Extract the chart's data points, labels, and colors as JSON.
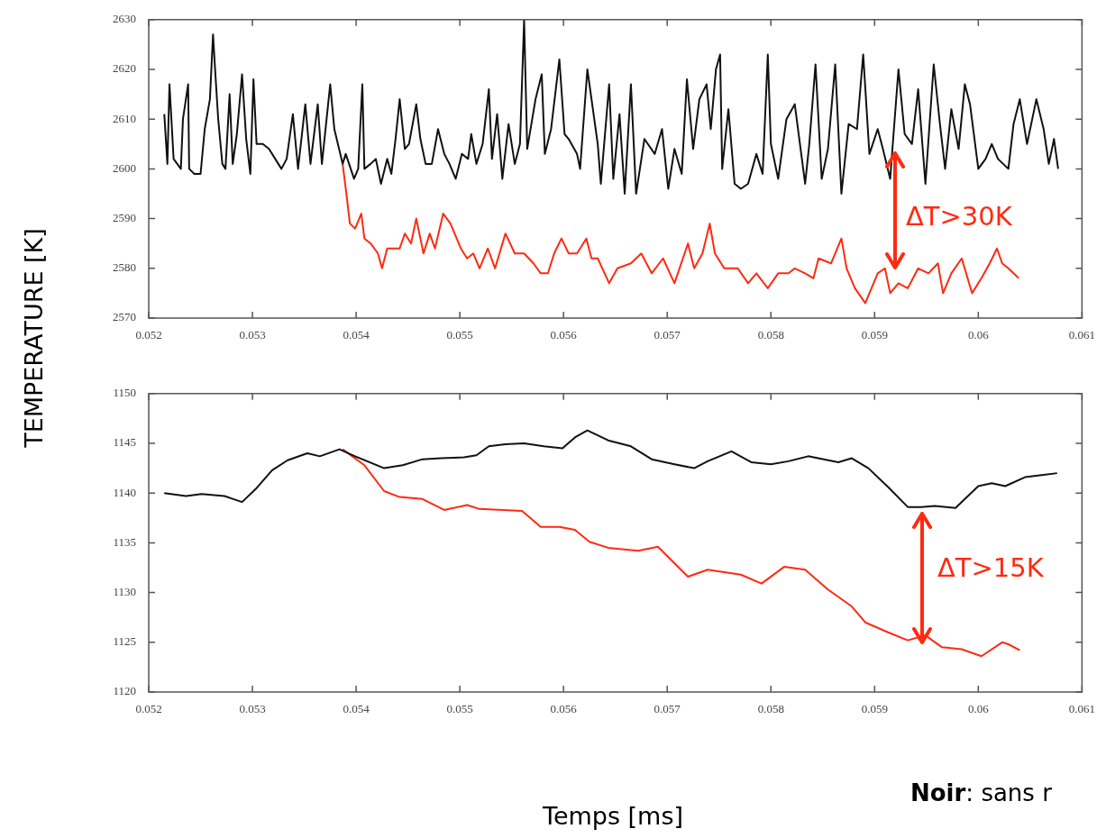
{
  "chart_data": [
    {
      "type": "line",
      "ylabel": "TEMPERATURE [K]",
      "xlim": [
        0.052,
        0.061
      ],
      "xticks": [
        0.052,
        0.053,
        0.054,
        0.055,
        0.056,
        0.057,
        0.058,
        0.059,
        0.06,
        0.061
      ],
      "ylim": [
        2570,
        2630
      ],
      "yticks": [
        2570,
        2580,
        2590,
        2600,
        2610,
        2620,
        2630
      ],
      "marker": "none",
      "line_style": "solid",
      "annotations": [
        "ΔT>30K"
      ],
      "series": [
        {
          "color": "#111111",
          "x": [
            0.05215,
            0.05218,
            0.0522,
            0.05224,
            0.05231,
            0.05233,
            0.05238,
            0.05239,
            0.05244,
            0.0525,
            0.05254,
            0.05259,
            0.05262,
            0.05264,
            0.05267,
            0.05271,
            0.05274,
            0.05278,
            0.05281,
            0.05285,
            0.0529,
            0.05294,
            0.05298,
            0.05301,
            0.05304,
            0.0531,
            0.05316,
            0.05322,
            0.05328,
            0.05333,
            0.05339,
            0.05344,
            0.05351,
            0.05356,
            0.05363,
            0.05367,
            0.05375,
            0.05379,
            0.05387,
            0.0539,
            0.05398,
            0.05402,
            0.05406,
            0.05408,
            0.05414,
            0.05419,
            0.05424,
            0.0543,
            0.05434,
            0.05438,
            0.05442,
            0.05447,
            0.05451,
            0.05458,
            0.05462,
            0.05467,
            0.05473,
            0.05479,
            0.05485,
            0.0549,
            0.05496,
            0.05502,
            0.05508,
            0.05511,
            0.05516,
            0.05522,
            0.05528,
            0.05531,
            0.05536,
            0.05541,
            0.05547,
            0.05553,
            0.05558,
            0.05562,
            0.05565,
            0.05573,
            0.05579,
            0.05582,
            0.05588,
            0.05596,
            0.05601,
            0.05605,
            0.05613,
            0.05616,
            0.05623,
            0.05633,
            0.05636,
            0.05644,
            0.05648,
            0.05654,
            0.05659,
            0.05665,
            0.0567,
            0.05678,
            0.05688,
            0.05695,
            0.05701,
            0.05707,
            0.05714,
            0.05719,
            0.05725,
            0.05731,
            0.05738,
            0.05742,
            0.05747,
            0.05751,
            0.05753,
            0.05759,
            0.05765,
            0.05771,
            0.05778,
            0.05786,
            0.05792,
            0.05797,
            0.058,
            0.05807,
            0.05815,
            0.05823,
            0.05833,
            0.05837,
            0.05843,
            0.05849,
            0.05855,
            0.05862,
            0.05868,
            0.05875,
            0.05883,
            0.05889,
            0.05895,
            0.05903,
            0.05908,
            0.05915,
            0.05923,
            0.05929,
            0.05936,
            0.05942,
            0.05949,
            0.05957,
            0.05963,
            0.05968,
            0.05974,
            0.05981,
            0.05987,
            0.05992,
            0.06,
            0.06007,
            0.06013,
            0.06019,
            0.06029,
            0.06034,
            0.0604,
            0.06047,
            0.06056,
            0.06063,
            0.06068,
            0.06073,
            0.06077
          ],
          "values": [
            2611,
            2601,
            2617,
            2602,
            2600,
            2610,
            2617,
            2600,
            2599,
            2599,
            2608,
            2614,
            2627,
            2620,
            2610,
            2601,
            2600,
            2615,
            2601,
            2607,
            2619,
            2606,
            2599,
            2618,
            2605,
            2605,
            2604,
            2602,
            2600,
            2602,
            2611,
            2600,
            2613,
            2601,
            2613,
            2601,
            2617,
            2608,
            2601,
            2603,
            2598,
            2600,
            2617,
            2600,
            2601,
            2602,
            2597,
            2602,
            2599,
            2606,
            2614,
            2604,
            2605,
            2613,
            2606,
            2601,
            2601,
            2608,
            2603,
            2601,
            2598,
            2603,
            2602,
            2607,
            2601,
            2605,
            2616,
            2602,
            2611,
            2598,
            2609,
            2601,
            2605,
            2630,
            2604,
            2614,
            2619,
            2603,
            2608,
            2622,
            2607,
            2606,
            2603,
            2600,
            2620,
            2605,
            2597,
            2617,
            2598,
            2611,
            2595,
            2617,
            2595,
            2606,
            2603,
            2608,
            2596,
            2604,
            2599,
            2618,
            2604,
            2614,
            2617,
            2608,
            2620,
            2623,
            2600,
            2612,
            2597,
            2596,
            2597,
            2603,
            2599,
            2623,
            2605,
            2598,
            2610,
            2613,
            2597,
            2605,
            2621,
            2598,
            2604,
            2621,
            2595,
            2609,
            2608,
            2623,
            2603,
            2608,
            2604,
            2598,
            2620,
            2607,
            2605,
            2616,
            2597,
            2621,
            2609,
            2600,
            2612,
            2604,
            2617,
            2613,
            2600,
            2602,
            2605,
            2602,
            2600,
            2609,
            2614,
            2605,
            2614,
            2608,
            2601,
            2606,
            2600
          ]
        },
        {
          "color": "#ff2a10",
          "x": [
            0.05387,
            0.0539,
            0.05394,
            0.05399,
            0.05405,
            0.05408,
            0.05414,
            0.05421,
            0.05425,
            0.0543,
            0.05436,
            0.05442,
            0.05447,
            0.05453,
            0.05458,
            0.05462,
            0.05465,
            0.05471,
            0.05476,
            0.05484,
            0.05491,
            0.05501,
            0.05507,
            0.05513,
            0.05519,
            0.05527,
            0.05534,
            0.05544,
            0.05553,
            0.05562,
            0.05571,
            0.05578,
            0.05585,
            0.05591,
            0.05598,
            0.05605,
            0.05613,
            0.05622,
            0.05627,
            0.05633,
            0.05644,
            0.05652,
            0.05665,
            0.05675,
            0.05685,
            0.05696,
            0.05707,
            0.0572,
            0.05726,
            0.05734,
            0.05741,
            0.05746,
            0.05755,
            0.05768,
            0.05778,
            0.05786,
            0.05797,
            0.05807,
            0.05817,
            0.05823,
            0.05833,
            0.05841,
            0.05846,
            0.05858,
            0.05868,
            0.05873,
            0.05881,
            0.05891,
            0.05897,
            0.05903,
            0.0591,
            0.05915,
            0.05923,
            0.05932,
            0.05942,
            0.05952,
            0.05961,
            0.05966,
            0.05974,
            0.05984,
            0.05994,
            0.06003,
            0.06011,
            0.06018,
            0.06023,
            0.06029,
            0.06039
          ],
          "values": [
            2601,
            2596,
            2589,
            2588,
            2591,
            2586,
            2585,
            2583,
            2580,
            2584,
            2584,
            2584,
            2587,
            2585,
            2590,
            2586,
            2583,
            2587,
            2584,
            2591,
            2589,
            2584,
            2582,
            2583,
            2580,
            2584,
            2580,
            2587,
            2583,
            2583,
            2581,
            2579,
            2579,
            2583,
            2586,
            2583,
            2583,
            2586,
            2582,
            2582,
            2577,
            2580,
            2581,
            2583,
            2579,
            2582,
            2577,
            2585,
            2580,
            2583,
            2589,
            2583,
            2580,
            2580,
            2577,
            2579,
            2576,
            2579,
            2579,
            2580,
            2579,
            2578,
            2582,
            2581,
            2586,
            2580,
            2576,
            2573,
            2576,
            2579,
            2580,
            2575,
            2577,
            2576,
            2580,
            2579,
            2581,
            2575,
            2579,
            2582,
            2575,
            2578,
            2581,
            2584,
            2581,
            2580,
            2578
          ]
        }
      ]
    },
    {
      "type": "line",
      "xlabel": "Temps [ms]",
      "xlim": [
        0.052,
        0.061
      ],
      "xticks": [
        0.052,
        0.053,
        0.054,
        0.055,
        0.056,
        0.057,
        0.058,
        0.059,
        0.06,
        0.061
      ],
      "ylim": [
        1120,
        1150
      ],
      "yticks": [
        1120,
        1125,
        1130,
        1135,
        1140,
        1145,
        1150
      ],
      "marker": "none",
      "line_style": "solid",
      "annotations": [
        "ΔT>15K",
        "Noir: sans r"
      ],
      "series": [
        {
          "color": "#111111",
          "x": [
            0.05215,
            0.05236,
            0.05251,
            0.05273,
            0.0529,
            0.05304,
            0.05319,
            0.05334,
            0.05353,
            0.05365,
            0.05384,
            0.05399,
            0.05427,
            0.05445,
            0.05464,
            0.05482,
            0.05504,
            0.05516,
            0.05528,
            0.05544,
            0.05562,
            0.05581,
            0.05599,
            0.05611,
            0.05623,
            0.05643,
            0.05665,
            0.05685,
            0.05707,
            0.05726,
            0.05739,
            0.05762,
            0.05781,
            0.058,
            0.05817,
            0.05836,
            0.05865,
            0.05878,
            0.05894,
            0.05913,
            0.05932,
            0.05945,
            0.05958,
            0.05978,
            0.06,
            0.06013,
            0.06026,
            0.06045,
            0.06061,
            0.06076
          ],
          "values": [
            1140,
            1139.7,
            1139.9,
            1139.7,
            1139.1,
            1140.5,
            1142.3,
            1143.3,
            1144,
            1143.7,
            1144.4,
            1143.7,
            1142.5,
            1142.8,
            1143.4,
            1143.5,
            1143.6,
            1143.8,
            1144.7,
            1144.9,
            1145,
            1144.7,
            1144.5,
            1145.6,
            1146.3,
            1145.3,
            1144.7,
            1143.4,
            1142.9,
            1142.5,
            1143.2,
            1144.2,
            1143.1,
            1142.9,
            1143.2,
            1143.7,
            1143.1,
            1143.5,
            1142.5,
            1140.6,
            1138.6,
            1138.6,
            1138.7,
            1138.5,
            1140.7,
            1141,
            1140.7,
            1141.6,
            1141.8,
            1142
          ]
        },
        {
          "color": "#ff2a10",
          "x": [
            0.05387,
            0.05408,
            0.05427,
            0.05442,
            0.05464,
            0.05485,
            0.05507,
            0.05519,
            0.0556,
            0.05578,
            0.05596,
            0.05611,
            0.05625,
            0.05643,
            0.05672,
            0.05691,
            0.0572,
            0.05739,
            0.05771,
            0.05791,
            0.05813,
            0.05833,
            0.05855,
            0.05878,
            0.05891,
            0.05913,
            0.05932,
            0.05949,
            0.05965,
            0.05984,
            0.06003,
            0.06023,
            0.06029,
            0.0604
          ],
          "values": [
            1144.4,
            1142.8,
            1140.2,
            1139.6,
            1139.4,
            1138.3,
            1138.8,
            1138.4,
            1138.2,
            1136.6,
            1136.6,
            1136.3,
            1135.1,
            1134.5,
            1134.2,
            1134.6,
            1131.6,
            1132.3,
            1131.8,
            1130.9,
            1132.6,
            1132.3,
            1130.3,
            1128.6,
            1127,
            1126,
            1125.2,
            1125.7,
            1124.5,
            1124.3,
            1123.6,
            1125,
            1124.8,
            1124.2
          ]
        }
      ]
    }
  ]
}
